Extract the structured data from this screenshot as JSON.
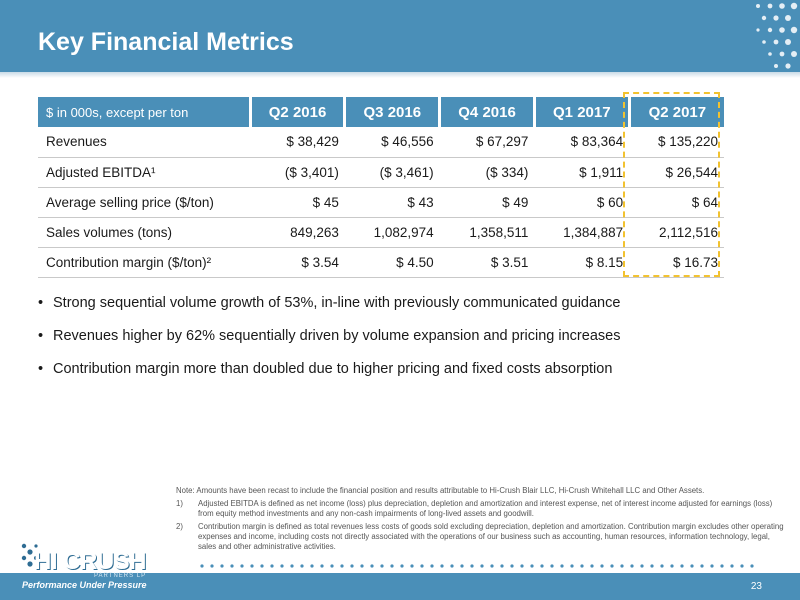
{
  "slide": {
    "title": "Key Financial Metrics",
    "page_number": "23"
  },
  "table": {
    "header_label": "$ in 000s, except per ton",
    "quarters": [
      "Q2 2016",
      "Q3 2016",
      "Q4 2016",
      "Q1 2017",
      "Q2 2017"
    ],
    "rows": [
      {
        "label": "Revenues",
        "values": [
          "$ 38,429",
          "$ 46,556",
          "$ 67,297",
          "$ 83,364",
          "$ 135,220"
        ]
      },
      {
        "label": "Adjusted EBITDA¹",
        "values": [
          "($ 3,401)",
          "($ 3,461)",
          "($ 334)",
          "$ 1,911",
          "$ 26,544"
        ]
      },
      {
        "label": "Average selling price ($/ton)",
        "values": [
          "$ 45",
          "$ 43",
          "$ 49",
          "$ 60",
          "$ 64"
        ]
      },
      {
        "label": "Sales volumes (tons)",
        "values": [
          "849,263",
          "1,082,974",
          "1,358,511",
          "1,384,887",
          "2,112,516"
        ]
      },
      {
        "label": "Contribution margin ($/ton)²",
        "values": [
          "$ 3.54",
          "$ 4.50",
          "$ 3.51",
          "$ 8.15",
          "$ 16.73"
        ]
      }
    ],
    "highlight_color": "#f2c230"
  },
  "bullets": [
    "Strong sequential volume growth of 53%, in-line with previously communicated guidance",
    "Revenues higher by 62% sequentially driven by volume expansion and pricing increases",
    "Contribution margin more than doubled due to higher pricing and fixed costs absorption"
  ],
  "notes": {
    "main": "Note: Amounts have been recast to include the financial position and results attributable to Hi-Crush Blair LLC, Hi-Crush Whitehall LLC and Other Assets.",
    "footnotes": [
      {
        "num": "1)",
        "text": "Adjusted EBITDA is defined as net income (loss) plus depreciation, depletion and amortization and interest expense, net of interest income adjusted for earnings (loss) from equity method investments and any non-cash impairments of long-lived assets and goodwill."
      },
      {
        "num": "2)",
        "text": "Contribution margin is defined as total revenues less costs of goods sold excluding depreciation, depletion and amortization. Contribution margin excludes other operating expenses and income, including costs not directly associated with the operations of our business such as accounting, human resources, information technology, legal, sales and other administrative activities."
      }
    ]
  },
  "logo": {
    "name": "HI CRUSH",
    "partners": "PARTNERS LP",
    "tagline": "Performance Under Pressure"
  },
  "colors": {
    "brand_blue": "#4a8fb8",
    "highlight": "#f2c230"
  }
}
